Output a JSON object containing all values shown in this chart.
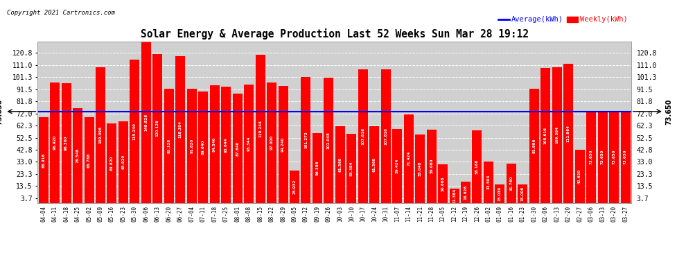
{
  "title": "Solar Energy & Average Production Last 52 Weeks Sun Mar 28 19:12",
  "copyright": "Copyright 2021 Cartronics.com",
  "legend_avg": "Average(kWh)",
  "legend_weekly": "Weekly(kWh)",
  "average_value": 73.65,
  "bar_color": "#ff0000",
  "avg_line_color": "#0000ff",
  "background_color": "#ffffff",
  "plot_bg_color": "#d0d0d0",
  "grid_color": "#ffffff",
  "yticks": [
    3.7,
    13.5,
    23.3,
    33.0,
    42.8,
    52.5,
    62.3,
    72.0,
    81.8,
    91.5,
    101.3,
    111.0,
    120.8
  ],
  "ylim": [
    0,
    130
  ],
  "categories": [
    "04-04",
    "04-11",
    "04-18",
    "04-25",
    "05-02",
    "05-09",
    "05-16",
    "05-23",
    "05-30",
    "06-06",
    "06-13",
    "06-20",
    "06-27",
    "07-04",
    "07-11",
    "07-18",
    "07-25",
    "08-01",
    "08-08",
    "08-15",
    "08-22",
    "08-29",
    "09-05",
    "09-12",
    "09-19",
    "09-26",
    "10-03",
    "10-10",
    "10-17",
    "10-24",
    "10-31",
    "11-07",
    "11-14",
    "11-21",
    "11-28",
    "12-05",
    "12-12",
    "12-19",
    "12-26",
    "01-02",
    "01-09",
    "01-16",
    "01-23",
    "01-30",
    "02-06",
    "02-13",
    "02-20",
    "02-27",
    "03-06",
    "03-13",
    "03-20",
    "03-27"
  ],
  "values": [
    68.916,
    96.92,
    96.36,
    76.548,
    68.788,
    109.096,
    63.82,
    65.92,
    115.24,
    148.828,
    120.128,
    92.128,
    118.304,
    91.82,
    89.64,
    94.54,
    93.644,
    87.84,
    95.344,
    119.244,
    97.0,
    94.24,
    25.932,
    101.272,
    56.388,
    101.048,
    61.56,
    55.384,
    107.816,
    61.56,
    107.81,
    59.424,
    71.424,
    55.048,
    59.08,
    30.868,
    11.384,
    16.928,
    58.168,
    33.504,
    15.03,
    31.76,
    15.006,
    91.996,
    108.616,
    109.364,
    111.964,
    42.62,
    73.65,
    73.65,
    73.65,
    73.65
  ]
}
